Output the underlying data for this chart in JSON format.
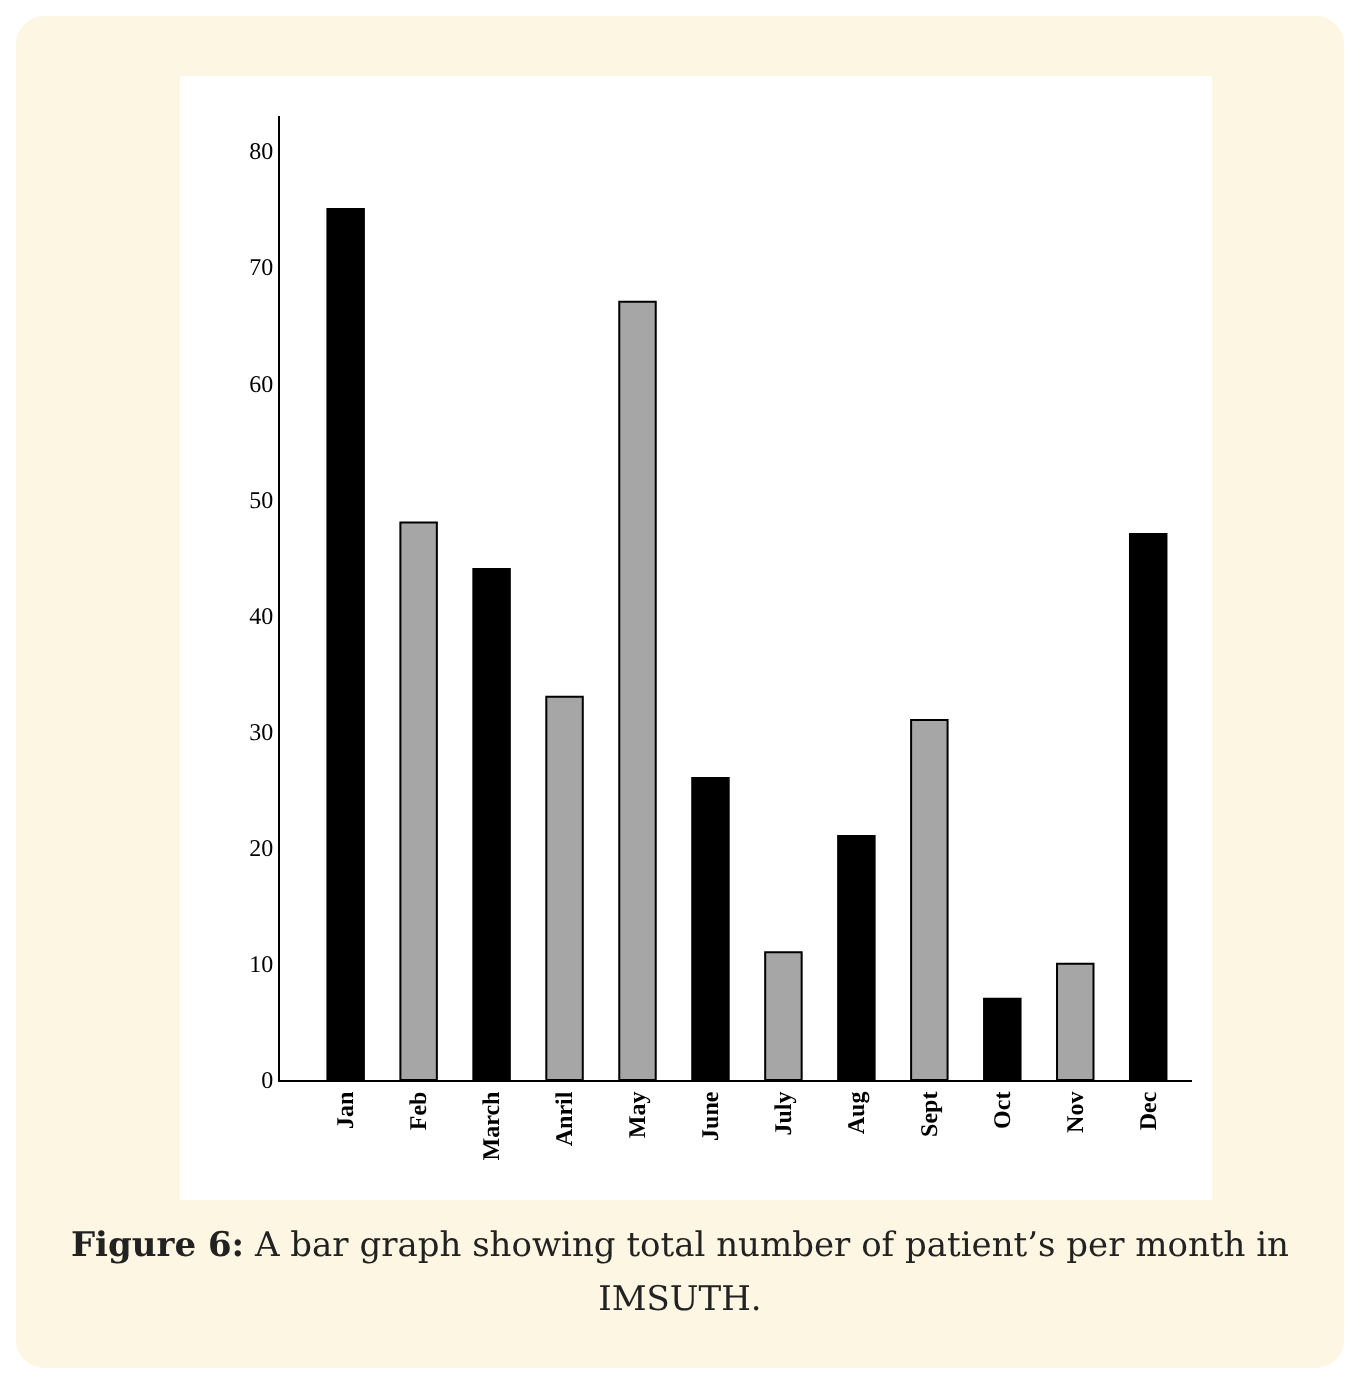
{
  "chart_data": {
    "type": "bar",
    "categories": [
      "Jan",
      "Feb",
      "March",
      "Anril",
      "May",
      "June",
      "July",
      "Aug",
      "Sept",
      "Oct",
      "Nov",
      "Dec"
    ],
    "values": [
      75,
      48,
      44,
      33,
      67,
      26,
      11,
      21,
      31,
      7,
      10,
      47
    ],
    "colors": [
      "#000000",
      "#a6a6a6",
      "#000000",
      "#a6a6a6",
      "#a6a6a6",
      "#000000",
      "#a6a6a6",
      "#000000",
      "#a6a6a6",
      "#000000",
      "#a6a6a6",
      "#000000"
    ],
    "ylim": [
      0,
      83
    ],
    "yticks": [
      0,
      10,
      20,
      30,
      40,
      50,
      60,
      70,
      80
    ],
    "grid": false,
    "legend": false,
    "annotations": [
      "Figure 6: A bar graph showing total number of patient’s per month in IMSUTH."
    ]
  }
}
